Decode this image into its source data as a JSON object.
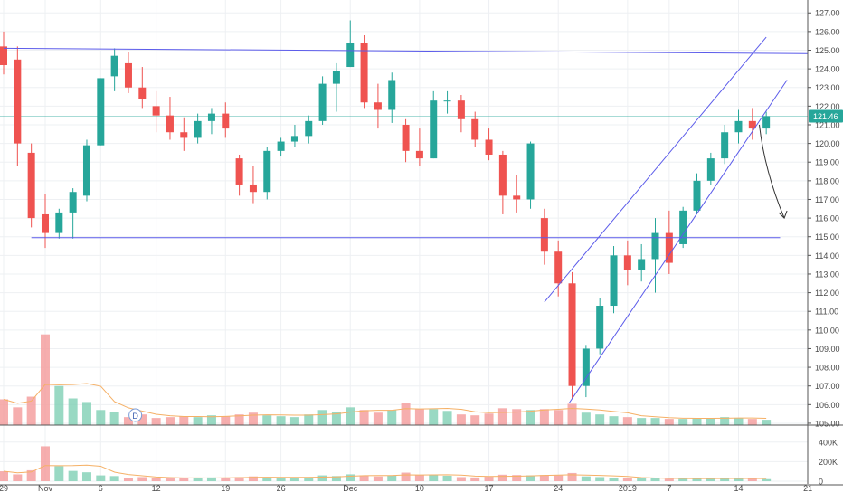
{
  "colors": {
    "up": "#26a69a",
    "down": "#ef5350",
    "up_volume": "#7fcfb4",
    "down_volume": "#f49a9a",
    "trendline": "#5b5bea",
    "arrow": "#333333",
    "volume_ma": "#f5b066",
    "last_price_tag": "#26a69a",
    "grid": "#eef0f3",
    "axis_text": "#4a4a4a"
  },
  "chart_data": {
    "type": "candlestick",
    "price_axis": {
      "ticks": [
        "127.00",
        "126.00",
        "125.00",
        "124.00",
        "123.00",
        "122.00",
        "121.00",
        "120.00",
        "119.00",
        "118.00",
        "117.00",
        "116.00",
        "115.00",
        "114.00",
        "113.00",
        "112.00",
        "111.00",
        "110.00",
        "109.00",
        "108.00",
        "107.00",
        "106.00",
        "105.00"
      ],
      "range": [
        104.9,
        127.4
      ],
      "last_price": "121.46"
    },
    "volume_axis": {
      "ticks": [
        "400K",
        "200K",
        "0"
      ],
      "range": [
        0,
        500000
      ]
    },
    "x_axis": {
      "ticks": [
        {
          "label": "29",
          "i": 0
        },
        {
          "label": "Nov",
          "i": 3
        },
        {
          "label": "6",
          "i": 7
        },
        {
          "label": "12",
          "i": 11
        },
        {
          "label": "19",
          "i": 16
        },
        {
          "label": "26",
          "i": 20
        },
        {
          "label": "Dec",
          "i": 25
        },
        {
          "label": "10",
          "i": 30
        },
        {
          "label": "17",
          "i": 35
        },
        {
          "label": "24",
          "i": 40
        },
        {
          "label": "2019",
          "i": 45
        },
        {
          "label": "7",
          "i": 48
        },
        {
          "label": "14",
          "i": 53
        },
        {
          "label": "21",
          "i": 58
        }
      ]
    },
    "drawings": {
      "resistance": {
        "from": {
          "i": 0,
          "price": 125.1
        },
        "to": {
          "i": 62,
          "price": 124.8
        }
      },
      "support": {
        "from": {
          "i": 2,
          "price": 114.95
        },
        "to": {
          "i": 56,
          "price": 114.95
        }
      },
      "channel_upper": {
        "from": {
          "i": 39,
          "price": 111.5
        },
        "to": {
          "i": 55,
          "price": 125.7
        }
      },
      "channel_lower": {
        "from": {
          "i": 40.8,
          "price": 106.1
        },
        "to": {
          "i": 56.5,
          "price": 123.4
        }
      },
      "projection_arrow": {
        "from": {
          "i": 54.5,
          "price": 121.0
        },
        "to": {
          "i": 56.3,
          "price": 116.0
        }
      }
    },
    "markers": [
      {
        "label": "D",
        "i": 9.5
      }
    ],
    "candles": [
      [
        125.2,
        126.0,
        123.7,
        124.2,
        1.45
      ],
      [
        124.5,
        125.2,
        118.8,
        120.0,
        1.0
      ],
      [
        119.5,
        120.0,
        115.5,
        116.0,
        1.6
      ],
      [
        116.2,
        117.3,
        114.4,
        115.2,
        5.1
      ],
      [
        115.2,
        116.5,
        114.9,
        116.3,
        2.2
      ],
      [
        116.3,
        117.6,
        114.9,
        117.4,
        1.5
      ],
      [
        117.2,
        120.2,
        116.9,
        119.9,
        1.3
      ],
      [
        119.9,
        123.5,
        119.9,
        123.5,
        0.85
      ],
      [
        123.6,
        125.1,
        122.8,
        124.7,
        0.75
      ],
      [
        124.3,
        124.9,
        122.7,
        123.0,
        0.45
      ],
      [
        123.0,
        124.1,
        121.9,
        122.4,
        0.6
      ],
      [
        122.0,
        122.8,
        120.6,
        121.5,
        0.4
      ],
      [
        121.5,
        122.5,
        120.2,
        120.6,
        0.45
      ],
      [
        120.6,
        121.4,
        119.6,
        120.3,
        0.5
      ],
      [
        120.3,
        121.6,
        120.0,
        121.2,
        0.45
      ],
      [
        121.2,
        121.9,
        120.5,
        121.6,
        0.55
      ],
      [
        121.6,
        122.2,
        120.3,
        120.8,
        0.5
      ],
      [
        119.2,
        119.4,
        117.2,
        117.8,
        0.6
      ],
      [
        117.8,
        118.8,
        116.8,
        117.4,
        0.7
      ],
      [
        117.4,
        119.8,
        117.0,
        119.6,
        0.55
      ],
      [
        119.6,
        120.3,
        119.3,
        120.1,
        0.5
      ],
      [
        120.1,
        121.0,
        119.8,
        120.4,
        0.45
      ],
      [
        120.4,
        121.5,
        120.0,
        121.2,
        0.6
      ],
      [
        121.2,
        123.6,
        121.0,
        123.2,
        0.85
      ],
      [
        123.2,
        124.3,
        121.7,
        123.9,
        0.75
      ],
      [
        124.1,
        126.6,
        124.1,
        125.4,
        1.0
      ],
      [
        125.4,
        125.8,
        121.9,
        122.2,
        0.85
      ],
      [
        122.2,
        123.2,
        120.8,
        121.8,
        0.7
      ],
      [
        121.8,
        123.8,
        121.1,
        123.4,
        0.85
      ],
      [
        121.0,
        121.3,
        119.0,
        119.6,
        1.25
      ],
      [
        119.6,
        120.8,
        118.8,
        119.2,
        0.9
      ],
      [
        119.2,
        122.8,
        119.2,
        122.3,
        0.9
      ],
      [
        122.3,
        122.8,
        121.6,
        122.3,
        0.8
      ],
      [
        122.3,
        122.6,
        120.6,
        121.3,
        0.6
      ],
      [
        121.3,
        121.7,
        119.8,
        120.2,
        0.55
      ],
      [
        120.2,
        120.8,
        119.1,
        119.4,
        0.65
      ],
      [
        119.4,
        119.6,
        116.2,
        117.2,
        0.95
      ],
      [
        117.2,
        118.3,
        116.3,
        117.0,
        0.9
      ],
      [
        117.0,
        120.1,
        116.5,
        120.0,
        0.85
      ],
      [
        116.0,
        116.5,
        113.5,
        114.2,
        0.9
      ],
      [
        114.2,
        114.8,
        111.8,
        112.5,
        0.85
      ],
      [
        112.5,
        113.1,
        106.3,
        107.0,
        1.2
      ],
      [
        107.0,
        109.2,
        106.4,
        109.0,
        0.7
      ],
      [
        109.0,
        111.7,
        108.7,
        111.3,
        0.6
      ],
      [
        111.3,
        114.5,
        110.9,
        114.0,
        0.5
      ],
      [
        114.0,
        114.8,
        112.4,
        113.2,
        0.45
      ],
      [
        113.2,
        114.6,
        112.6,
        113.8,
        0.4
      ],
      [
        113.8,
        116.0,
        112.0,
        115.2,
        0.4
      ],
      [
        115.2,
        116.4,
        113.0,
        113.6,
        0.35
      ],
      [
        114.6,
        116.6,
        114.4,
        116.4,
        0.35
      ],
      [
        116.4,
        118.4,
        116.2,
        118.0,
        0.4
      ],
      [
        118.0,
        119.5,
        117.8,
        119.2,
        0.4
      ],
      [
        119.2,
        121.0,
        118.9,
        120.6,
        0.45
      ],
      [
        120.6,
        121.8,
        120.0,
        121.2,
        0.4
      ],
      [
        121.2,
        121.9,
        120.2,
        120.8,
        0.35
      ],
      [
        120.8,
        121.7,
        120.5,
        121.46,
        0.3
      ]
    ]
  }
}
